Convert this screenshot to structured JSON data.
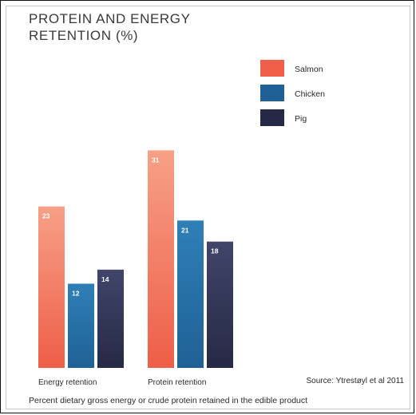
{
  "title_lines": [
    "PROTEIN AND ENERGY",
    "RETENTION (%)"
  ],
  "source": "Source: Ytrestøyl et al 2011",
  "footnote": "Percent dietary gross energy or crude protein retained in the edible product",
  "chart_data": {
    "type": "bar",
    "title": "PROTEIN AND ENERGY RETENTION (%)",
    "categories": [
      "Energy retention",
      "Protein retention"
    ],
    "series": [
      {
        "name": "Salmon",
        "values": [
          23,
          31
        ],
        "color_top": "#f7a087",
        "color_bottom": "#ee5e48"
      },
      {
        "name": "Chicken",
        "values": [
          12,
          21
        ],
        "color_top": "#2f7fb7",
        "color_bottom": "#1f6196"
      },
      {
        "name": "Pig",
        "values": [
          14,
          18
        ],
        "color_top": "#41456a",
        "color_bottom": "#262945"
      }
    ],
    "ylim": [
      0,
      34
    ],
    "grid": false,
    "legend": "top-right",
    "data_labels": true
  }
}
